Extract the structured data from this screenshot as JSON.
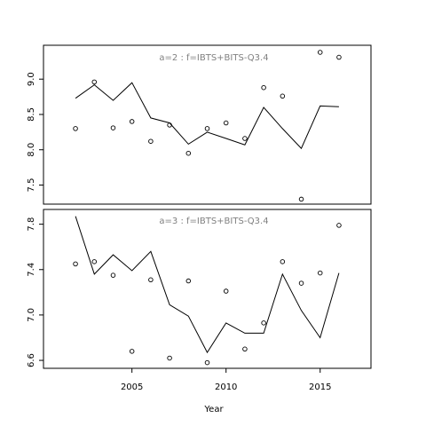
{
  "chart_data": {
    "type": "line",
    "xlabel": "Year",
    "xticks": [
      2005,
      2010,
      2015
    ],
    "xlim": [
      2000.3,
      2017.7
    ],
    "panels": [
      {
        "title": "a=2  :  f=IBTS+BITS-Q3.4",
        "ylim": [
          7.23,
          9.48
        ],
        "yticks": [
          "7.5",
          "8.0",
          "8.5",
          "9.0"
        ],
        "line_series": {
          "x": [
            2002,
            2003,
            2004,
            2005,
            2006,
            2007,
            2008,
            2009,
            2010,
            2011,
            2012,
            2013,
            2014,
            2015,
            2016
          ],
          "y": [
            8.73,
            8.92,
            8.7,
            8.95,
            8.45,
            8.38,
            8.08,
            8.25,
            8.16,
            8.07,
            8.6,
            8.3,
            8.02,
            8.62,
            8.61
          ]
        },
        "point_series": {
          "x": [
            2002,
            2003,
            2004,
            2005,
            2006,
            2007,
            2008,
            2009,
            2010,
            2011,
            2012,
            2013,
            2014,
            2015,
            2016
          ],
          "y": [
            8.3,
            8.96,
            8.31,
            8.4,
            8.12,
            8.35,
            7.95,
            8.3,
            8.38,
            8.16,
            8.88,
            8.76,
            7.3,
            9.38,
            9.31
          ]
        }
      },
      {
        "title": "a=3  :  f=IBTS+BITS-Q3.4",
        "ylim": [
          6.53,
          7.93
        ],
        "yticks": [
          "6.6",
          "7.0",
          "7.4",
          "7.8"
        ],
        "line_series": {
          "x": [
            2002,
            2003,
            2004,
            2005,
            2006,
            2007,
            2008,
            2009,
            2010,
            2011,
            2012,
            2013,
            2014,
            2015,
            2016
          ],
          "y": [
            7.87,
            7.36,
            7.53,
            7.39,
            7.56,
            7.09,
            6.99,
            6.67,
            6.93,
            6.84,
            6.84,
            7.36,
            7.04,
            6.8,
            7.37
          ]
        },
        "point_series": {
          "x": [
            2002,
            2003,
            2004,
            2005,
            2006,
            2007,
            2008,
            2009,
            2010,
            2011,
            2012,
            2013,
            2014,
            2015,
            2016
          ],
          "y": [
            7.45,
            7.47,
            7.35,
            6.68,
            7.31,
            6.62,
            7.3,
            6.58,
            7.21,
            6.7,
            6.93,
            7.47,
            7.28,
            7.37,
            7.79
          ]
        }
      }
    ]
  }
}
